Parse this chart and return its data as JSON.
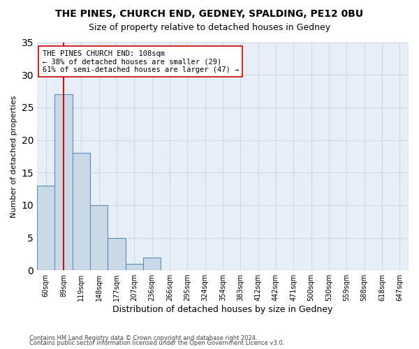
{
  "title1": "THE PINES, CHURCH END, GEDNEY, SPALDING, PE12 0BU",
  "title2": "Size of property relative to detached houses in Gedney",
  "xlabel": "Distribution of detached houses by size in Gedney",
  "ylabel": "Number of detached properties",
  "bar_values": [
    13,
    27,
    18,
    10,
    5,
    1,
    2,
    0,
    0,
    0,
    0,
    0,
    0,
    0,
    0,
    0,
    0,
    0,
    0,
    0,
    0
  ],
  "categories": [
    "60sqm",
    "89sqm",
    "119sqm",
    "148sqm",
    "177sqm",
    "207sqm",
    "236sqm",
    "266sqm",
    "295sqm",
    "324sqm",
    "354sqm",
    "383sqm",
    "412sqm",
    "442sqm",
    "471sqm",
    "500sqm",
    "530sqm",
    "559sqm",
    "588sqm",
    "618sqm",
    "647sqm"
  ],
  "bar_color": "#c9d9e8",
  "bar_edge_color": "#5b8db8",
  "vline_x": 1.5,
  "vline_color": "#cc0000",
  "ylim": [
    0,
    35
  ],
  "yticks": [
    0,
    5,
    10,
    15,
    20,
    25,
    30,
    35
  ],
  "annotation_text": "THE PINES CHURCH END: 108sqm\n← 38% of detached houses are smaller (29)\n61% of semi-detached houses are larger (47) →",
  "annotation_box_color": "#ffffff",
  "annotation_box_edge": "#cc0000",
  "footer1": "Contains HM Land Registry data © Crown copyright and database right 2024.",
  "footer2": "Contains public sector information licensed under the Open Government Licence v3.0.",
  "background_color": "#ffffff",
  "axes_bg_color": "#e8eef5",
  "grid_color": "#d0d8e8"
}
